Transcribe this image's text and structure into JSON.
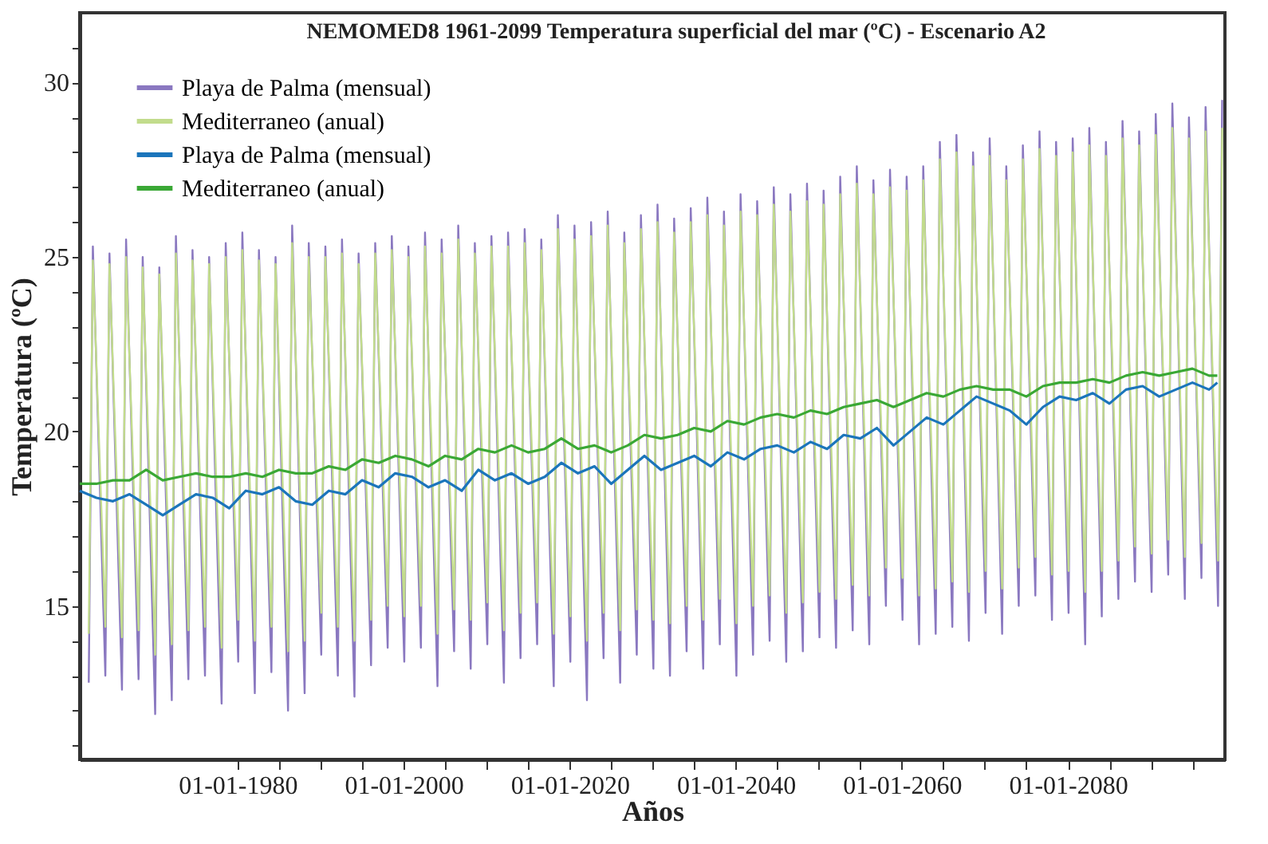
{
  "chart_data": {
    "type": "line",
    "title": "NEMOMED8 1961-2099 Temperatura superficial del mar (ºC) - Escenario A2",
    "xlabel": "Años",
    "ylabel": "Temperatura (ºC)",
    "xlim": [
      "1961-01",
      "2098-12"
    ],
    "ylim": [
      10.6,
      32
    ],
    "xticks": [
      {
        "value": "1980-01-01",
        "label": "01-01-1980"
      },
      {
        "value": "1985-01-01",
        "label": null
      },
      {
        "value": "1990-01-01",
        "label": null
      },
      {
        "value": "1995-01-01",
        "label": null
      },
      {
        "value": "2000-01-01",
        "label": "01-01-2000"
      },
      {
        "value": "2005-01-01",
        "label": null
      },
      {
        "value": "2010-01-01",
        "label": null
      },
      {
        "value": "2015-01-01",
        "label": null
      },
      {
        "value": "2020-01-01",
        "label": "01-01-2020"
      },
      {
        "value": "2025-01-01",
        "label": null
      },
      {
        "value": "2030-01-01",
        "label": null
      },
      {
        "value": "2035-01-01",
        "label": null
      },
      {
        "value": "2040-01-01",
        "label": "01-01-2040"
      },
      {
        "value": "2045-01-01",
        "label": null
      },
      {
        "value": "2050-01-01",
        "label": null
      },
      {
        "value": "2055-01-01",
        "label": null
      },
      {
        "value": "2060-01-01",
        "label": "01-01-2060"
      },
      {
        "value": "2065-01-01",
        "label": null
      },
      {
        "value": "2070-01-01",
        "label": null
      },
      {
        "value": "2075-01-01",
        "label": null
      },
      {
        "value": "2080-01-01",
        "label": "01-01-2080"
      },
      {
        "value": "2085-01-01",
        "label": null
      },
      {
        "value": "2090-01-01",
        "label": null
      },
      {
        "value": "2095-01-01",
        "label": null
      }
    ],
    "yticks": [
      {
        "value": 11,
        "label": null
      },
      {
        "value": 12,
        "label": null
      },
      {
        "value": 13,
        "label": null
      },
      {
        "value": 14,
        "label": null
      },
      15,
      {
        "value": 16,
        "label": null
      },
      {
        "value": 17,
        "label": null
      },
      {
        "value": 18,
        "label": null
      },
      {
        "value": 19,
        "label": null
      },
      20,
      {
        "value": 21,
        "label": null
      },
      {
        "value": 22,
        "label": null
      },
      {
        "value": 23,
        "label": null
      },
      {
        "value": 24,
        "label": null
      },
      25,
      {
        "value": 26,
        "label": null
      },
      {
        "value": 27,
        "label": null
      },
      {
        "value": 28,
        "label": null
      },
      {
        "value": 29,
        "label": null
      },
      30,
      {
        "value": 31,
        "label": null
      }
    ],
    "grid": false,
    "legend": "top left",
    "marker": "none",
    "line_style": "solid",
    "series": [
      {
        "name": "Playa de Palma (mensual)",
        "color": "#8a78c0",
        "x": [
          "1962-02",
          "1962-08",
          "1964-02",
          "1964-08",
          "1966-02",
          "1966-08",
          "1968-02",
          "1968-08",
          "1970-02",
          "1970-08",
          "1972-02",
          "1972-08",
          "1974-02",
          "1974-08",
          "1976-02",
          "1976-08",
          "1978-02",
          "1978-08",
          "1980-02",
          "1980-08",
          "1982-02",
          "1982-08",
          "1984-02",
          "1984-08",
          "1986-02",
          "1986-08",
          "1988-02",
          "1988-08",
          "1990-02",
          "1990-08",
          "1992-02",
          "1992-08",
          "1994-02",
          "1994-08",
          "1996-02",
          "1996-08",
          "1998-02",
          "1998-08",
          "2000-02",
          "2000-08",
          "2002-02",
          "2002-08",
          "2004-02",
          "2004-08",
          "2006-02",
          "2006-08",
          "2008-02",
          "2008-08",
          "2010-02",
          "2010-08",
          "2012-02",
          "2012-08",
          "2014-02",
          "2014-08",
          "2016-02",
          "2016-08",
          "2018-02",
          "2018-08",
          "2020-02",
          "2020-08",
          "2022-02",
          "2022-08",
          "2024-02",
          "2024-08",
          "2026-02",
          "2026-08",
          "2028-02",
          "2028-08",
          "2030-02",
          "2030-08",
          "2032-02",
          "2032-08",
          "2034-02",
          "2034-08",
          "2036-02",
          "2036-08",
          "2038-02",
          "2038-08",
          "2040-02",
          "2040-08",
          "2042-02",
          "2042-08",
          "2044-02",
          "2044-08",
          "2046-02",
          "2046-08",
          "2048-02",
          "2048-08",
          "2050-02",
          "2050-08",
          "2052-02",
          "2052-08",
          "2054-02",
          "2054-08",
          "2056-02",
          "2056-08",
          "2058-02",
          "2058-08",
          "2060-02",
          "2060-08",
          "2062-02",
          "2062-08",
          "2064-02",
          "2064-08",
          "2066-02",
          "2066-08",
          "2068-02",
          "2068-08",
          "2070-02",
          "2070-08",
          "2072-02",
          "2072-08",
          "2074-02",
          "2074-08",
          "2076-02",
          "2076-08",
          "2078-02",
          "2078-08",
          "2080-02",
          "2080-08",
          "2082-02",
          "2082-08",
          "2084-02",
          "2084-08",
          "2086-02",
          "2086-08",
          "2088-02",
          "2088-08",
          "2090-02",
          "2090-08",
          "2092-02",
          "2092-08",
          "2094-02",
          "2094-08",
          "2096-02",
          "2096-08",
          "2098-02",
          "2098-08"
        ],
        "values": [
          12.8,
          25.3,
          13.0,
          25.1,
          12.6,
          25.5,
          12.9,
          25.0,
          11.9,
          24.7,
          12.3,
          25.6,
          12.9,
          25.2,
          13.0,
          25.0,
          12.2,
          25.4,
          13.4,
          25.7,
          12.5,
          25.2,
          13.1,
          25.0,
          12.0,
          25.9,
          12.5,
          25.4,
          13.6,
          25.3,
          13.0,
          25.5,
          12.4,
          25.1,
          13.3,
          25.4,
          13.8,
          25.6,
          13.4,
          25.3,
          13.8,
          25.7,
          12.7,
          25.5,
          13.7,
          25.9,
          13.2,
          25.4,
          13.9,
          25.6,
          12.8,
          25.7,
          13.5,
          25.8,
          13.9,
          25.5,
          12.7,
          26.2,
          13.4,
          25.9,
          12.3,
          26.0,
          13.5,
          26.3,
          12.8,
          25.7,
          13.6,
          26.2,
          13.2,
          26.5,
          13.0,
          26.1,
          13.7,
          26.4,
          13.2,
          26.7,
          13.9,
          26.3,
          13.0,
          26.8,
          13.6,
          26.6,
          14.0,
          27.0,
          13.4,
          26.8,
          13.7,
          27.1,
          14.1,
          26.9,
          13.8,
          27.3,
          14.3,
          27.6,
          13.9,
          27.2,
          15.0,
          27.5,
          14.6,
          27.3,
          13.9,
          27.6,
          14.2,
          28.3,
          14.4,
          28.5,
          14.0,
          28.0,
          14.8,
          28.4,
          14.2,
          27.6,
          15.0,
          28.2,
          15.3,
          28.6,
          14.6,
          28.3,
          14.8,
          28.4,
          13.9,
          28.7,
          14.7,
          28.3,
          15.2,
          28.9,
          15.7,
          28.6,
          15.4,
          29.1,
          15.9,
          29.4,
          15.2,
          29.0,
          15.8,
          29.3,
          15.0,
          29.5
        ]
      },
      {
        "name": "Mediterraneo (anual)",
        "color": "#c2dc8c",
        "x": [
          "1962-02",
          "1962-08",
          "1964-02",
          "1964-08",
          "1966-02",
          "1966-08",
          "1968-02",
          "1968-08",
          "1970-02",
          "1970-08",
          "1972-02",
          "1972-08",
          "1974-02",
          "1974-08",
          "1976-02",
          "1976-08",
          "1978-02",
          "1978-08",
          "1980-02",
          "1980-08",
          "1982-02",
          "1982-08",
          "1984-02",
          "1984-08",
          "1986-02",
          "1986-08",
          "1988-02",
          "1988-08",
          "1990-02",
          "1990-08",
          "1992-02",
          "1992-08",
          "1994-02",
          "1994-08",
          "1996-02",
          "1996-08",
          "1998-02",
          "1998-08",
          "2000-02",
          "2000-08",
          "2002-02",
          "2002-08",
          "2004-02",
          "2004-08",
          "2006-02",
          "2006-08",
          "2008-02",
          "2008-08",
          "2010-02",
          "2010-08",
          "2012-02",
          "2012-08",
          "2014-02",
          "2014-08",
          "2016-02",
          "2016-08",
          "2018-02",
          "2018-08",
          "2020-02",
          "2020-08",
          "2022-02",
          "2022-08",
          "2024-02",
          "2024-08",
          "2026-02",
          "2026-08",
          "2028-02",
          "2028-08",
          "2030-02",
          "2030-08",
          "2032-02",
          "2032-08",
          "2034-02",
          "2034-08",
          "2036-02",
          "2036-08",
          "2038-02",
          "2038-08",
          "2040-02",
          "2040-08",
          "2042-02",
          "2042-08",
          "2044-02",
          "2044-08",
          "2046-02",
          "2046-08",
          "2048-02",
          "2048-08",
          "2050-02",
          "2050-08",
          "2052-02",
          "2052-08",
          "2054-02",
          "2054-08",
          "2056-02",
          "2056-08",
          "2058-02",
          "2058-08",
          "2060-02",
          "2060-08",
          "2062-02",
          "2062-08",
          "2064-02",
          "2064-08",
          "2066-02",
          "2066-08",
          "2068-02",
          "2068-08",
          "2070-02",
          "2070-08",
          "2072-02",
          "2072-08",
          "2074-02",
          "2074-08",
          "2076-02",
          "2076-08",
          "2078-02",
          "2078-08",
          "2080-02",
          "2080-08",
          "2082-02",
          "2082-08",
          "2084-02",
          "2084-08",
          "2086-02",
          "2086-08",
          "2088-02",
          "2088-08",
          "2090-02",
          "2090-08",
          "2092-02",
          "2092-08",
          "2094-02",
          "2094-08",
          "2096-02",
          "2096-08",
          "2098-02",
          "2098-08"
        ],
        "values": [
          14.2,
          24.9,
          14.4,
          24.8,
          14.1,
          25.0,
          14.3,
          24.7,
          13.6,
          24.5,
          13.9,
          25.1,
          14.3,
          24.9,
          14.4,
          24.8,
          13.8,
          25.0,
          14.6,
          25.2,
          14.0,
          24.9,
          14.4,
          24.8,
          13.7,
          25.4,
          14.0,
          25.0,
          14.8,
          25.0,
          14.4,
          25.1,
          14.0,
          24.8,
          14.6,
          25.1,
          15.0,
          25.2,
          14.7,
          25.0,
          15.0,
          25.3,
          14.2,
          25.1,
          14.9,
          25.5,
          14.6,
          25.1,
          15.1,
          25.3,
          14.3,
          25.3,
          14.8,
          25.4,
          15.1,
          25.2,
          14.2,
          25.8,
          14.7,
          25.5,
          14.0,
          25.6,
          14.8,
          25.9,
          14.3,
          25.4,
          14.9,
          25.8,
          14.6,
          26.0,
          14.5,
          25.7,
          15.0,
          26.0,
          14.6,
          26.2,
          15.2,
          25.9,
          14.5,
          26.3,
          15.0,
          26.2,
          15.3,
          26.5,
          14.8,
          26.3,
          15.1,
          26.6,
          15.4,
          26.5,
          15.2,
          26.8,
          15.6,
          27.1,
          15.3,
          26.8,
          16.1,
          27.0,
          15.8,
          26.9,
          15.3,
          27.2,
          15.5,
          27.8,
          15.7,
          28.0,
          15.4,
          27.6,
          16.0,
          27.9,
          15.5,
          27.2,
          16.1,
          27.8,
          16.4,
          28.1,
          15.9,
          27.9,
          16.0,
          28.0,
          15.4,
          28.2,
          16.0,
          27.9,
          16.3,
          28.4,
          16.7,
          28.2,
          16.5,
          28.5,
          16.9,
          28.7,
          16.4,
          28.4,
          16.8,
          28.6,
          16.3,
          28.7
        ]
      },
      {
        "name": "Playa de Palma (mensual)",
        "color": "#1b75bb",
        "x": [
          "1961",
          "1963",
          "1965",
          "1967",
          "1969",
          "1971",
          "1973",
          "1975",
          "1977",
          "1979",
          "1981",
          "1983",
          "1985",
          "1987",
          "1989",
          "1991",
          "1993",
          "1995",
          "1997",
          "1999",
          "2001",
          "2003",
          "2005",
          "2007",
          "2009",
          "2011",
          "2013",
          "2015",
          "2017",
          "2019",
          "2021",
          "2023",
          "2025",
          "2027",
          "2029",
          "2031",
          "2033",
          "2035",
          "2037",
          "2039",
          "2041",
          "2043",
          "2045",
          "2047",
          "2049",
          "2051",
          "2053",
          "2055",
          "2057",
          "2059",
          "2061",
          "2063",
          "2065",
          "2067",
          "2069",
          "2071",
          "2073",
          "2075",
          "2077",
          "2079",
          "2081",
          "2083",
          "2085",
          "2087",
          "2089",
          "2091",
          "2093",
          "2095",
          "2097",
          "2098"
        ],
        "values": [
          18.3,
          18.1,
          18.0,
          18.2,
          17.9,
          17.6,
          17.9,
          18.2,
          18.1,
          17.8,
          18.3,
          18.2,
          18.4,
          18.0,
          17.9,
          18.3,
          18.2,
          18.6,
          18.4,
          18.8,
          18.7,
          18.4,
          18.6,
          18.3,
          18.9,
          18.6,
          18.8,
          18.5,
          18.7,
          19.1,
          18.8,
          19.0,
          18.5,
          18.9,
          19.3,
          18.9,
          19.1,
          19.3,
          19.0,
          19.4,
          19.2,
          19.5,
          19.6,
          19.4,
          19.7,
          19.5,
          19.9,
          19.8,
          20.1,
          19.6,
          20.0,
          20.4,
          20.2,
          20.6,
          21.0,
          20.8,
          20.6,
          20.2,
          20.7,
          21.0,
          20.9,
          21.1,
          20.8,
          21.2,
          21.3,
          21.0,
          21.2,
          21.4,
          21.2,
          21.4
        ]
      },
      {
        "name": "Mediterraneo (anual)",
        "color": "#3aa835",
        "x": [
          "1961",
          "1963",
          "1965",
          "1967",
          "1969",
          "1971",
          "1973",
          "1975",
          "1977",
          "1979",
          "1981",
          "1983",
          "1985",
          "1987",
          "1989",
          "1991",
          "1993",
          "1995",
          "1997",
          "1999",
          "2001",
          "2003",
          "2005",
          "2007",
          "2009",
          "2011",
          "2013",
          "2015",
          "2017",
          "2019",
          "2021",
          "2023",
          "2025",
          "2027",
          "2029",
          "2031",
          "2033",
          "2035",
          "2037",
          "2039",
          "2041",
          "2043",
          "2045",
          "2047",
          "2049",
          "2051",
          "2053",
          "2055",
          "2057",
          "2059",
          "2061",
          "2063",
          "2065",
          "2067",
          "2069",
          "2071",
          "2073",
          "2075",
          "2077",
          "2079",
          "2081",
          "2083",
          "2085",
          "2087",
          "2089",
          "2091",
          "2093",
          "2095",
          "2097",
          "2098"
        ],
        "values": [
          18.5,
          18.5,
          18.6,
          18.6,
          18.9,
          18.6,
          18.7,
          18.8,
          18.7,
          18.7,
          18.8,
          18.7,
          18.9,
          18.8,
          18.8,
          19.0,
          18.9,
          19.2,
          19.1,
          19.3,
          19.2,
          19.0,
          19.3,
          19.2,
          19.5,
          19.4,
          19.6,
          19.4,
          19.5,
          19.8,
          19.5,
          19.6,
          19.4,
          19.6,
          19.9,
          19.8,
          19.9,
          20.1,
          20.0,
          20.3,
          20.2,
          20.4,
          20.5,
          20.4,
          20.6,
          20.5,
          20.7,
          20.8,
          20.9,
          20.7,
          20.9,
          21.1,
          21.0,
          21.2,
          21.3,
          21.2,
          21.2,
          21.0,
          21.3,
          21.4,
          21.4,
          21.5,
          21.4,
          21.6,
          21.7,
          21.6,
          21.7,
          21.8,
          21.6,
          21.6
        ]
      }
    ]
  }
}
